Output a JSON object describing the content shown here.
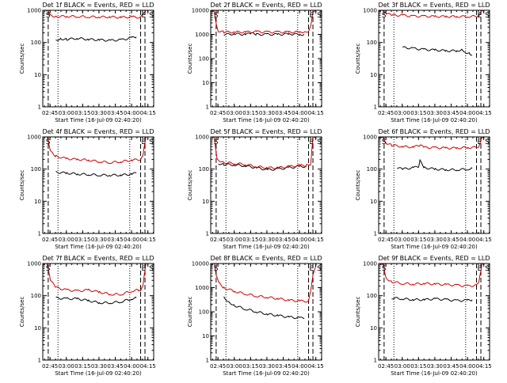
{
  "figure": {
    "background": "#ffffff",
    "axis_color": "#000000",
    "events_color": "#000000",
    "lld_color": "#cc0000"
  },
  "chart_data": [
    {
      "type": "line",
      "title": "Det 1f BLACK = Events, RED = LLD",
      "xlabel": "Start Time (16-Jul-09 02:40:20)",
      "ylabel": "Counts/sec",
      "yscale": "log",
      "ylim": [
        1,
        1000
      ],
      "xlim_minutes": [
        -2,
        100
      ],
      "x_ticks": [
        "02:45",
        "03:00",
        "03:15",
        "03:30",
        "03:45",
        "04:00",
        "04:15"
      ],
      "y_ticks": [
        "1",
        "10",
        "100",
        "1000"
      ],
      "markers": [
        {
          "label": "S",
          "minute": 0
        },
        {
          "label": "E",
          "minute": 88
        },
        {
          "label": "S",
          "minute": 95
        }
      ],
      "dashed_lines_minutes": [
        3,
        88,
        92
      ],
      "dotted_lines_minutes": [
        12,
        78
      ],
      "series": [
        {
          "name": "Events",
          "color": "#000000",
          "x": [
            10,
            15,
            20,
            30,
            40,
            50,
            60,
            70,
            80,
            84
          ],
          "y": [
            120,
            130,
            125,
            135,
            125,
            120,
            115,
            120,
            140,
            150
          ]
        },
        {
          "name": "LLD",
          "color": "#cc0000",
          "x": [
            -2,
            2,
            5,
            10,
            20,
            30,
            40,
            50,
            60,
            70,
            80,
            88,
            90,
            93,
            95
          ],
          "y": [
            1000,
            1000,
            700,
            640,
            650,
            640,
            630,
            620,
            620,
            600,
            620,
            600,
            700,
            1000,
            1000
          ]
        }
      ]
    },
    {
      "type": "line",
      "title": "Det 2f BLACK = Events, RED = LLD",
      "xlabel": "Start Time (16-Jul-09 02:40:20)",
      "ylabel": "Counts/sec",
      "yscale": "log",
      "ylim": [
        1,
        10000
      ],
      "xlim_minutes": [
        -2,
        100
      ],
      "x_ticks": [
        "02:45",
        "03:00",
        "03:15",
        "03:30",
        "03:45",
        "04:00",
        "04:15"
      ],
      "y_ticks": [
        "1",
        "10",
        "100",
        "1000",
        "10000"
      ],
      "markers": [
        {
          "label": "S",
          "minute": 0
        },
        {
          "label": "E",
          "minute": 88
        },
        {
          "label": "S",
          "minute": 95
        }
      ],
      "dashed_lines_minutes": [
        3,
        88,
        92
      ],
      "dotted_lines_minutes": [
        12,
        78
      ],
      "series": [
        {
          "name": "Events",
          "color": "#000000",
          "x": [
            10,
            20,
            30,
            35,
            40,
            50,
            60,
            70,
            80,
            84
          ],
          "y": [
            1000,
            1050,
            1000,
            1100,
            1000,
            1000,
            1000,
            1050,
            1000,
            1000
          ]
        },
        {
          "name": "LLD",
          "color": "#cc0000",
          "x": [
            -2,
            1,
            3,
            5,
            10,
            20,
            30,
            40,
            50,
            60,
            70,
            80,
            85,
            88,
            90,
            92,
            95
          ],
          "y": [
            10000,
            10000,
            3000,
            1400,
            1250,
            1250,
            1250,
            1300,
            1250,
            1250,
            1250,
            1250,
            1300,
            1400,
            2500,
            9000,
            10000
          ]
        }
      ]
    },
    {
      "type": "line",
      "title": "Det 3f BLACK = Events, RED = LLD",
      "xlabel": "Start Time (16-Jul-09 02:40:20)",
      "ylabel": "Counts/sec",
      "yscale": "log",
      "ylim": [
        1,
        1000
      ],
      "xlim_minutes": [
        -2,
        100
      ],
      "x_ticks": [
        "02:45",
        "03:00",
        "03:15",
        "03:30",
        "03:45",
        "04:00",
        "04:15"
      ],
      "y_ticks": [
        "1",
        "10",
        "100",
        "1000"
      ],
      "markers": [
        {
          "label": "S",
          "minute": 0
        },
        {
          "label": "E",
          "minute": 88
        },
        {
          "label": "S",
          "minute": 95
        }
      ],
      "dashed_lines_minutes": [
        3,
        88,
        92
      ],
      "dotted_lines_minutes": [
        12,
        78
      ],
      "series": [
        {
          "name": "Events",
          "color": "#000000",
          "x": [
            20,
            30,
            40,
            50,
            60,
            70,
            75,
            78,
            82,
            84
          ],
          "y": [
            70,
            65,
            60,
            58,
            55,
            55,
            60,
            50,
            45,
            40
          ]
        },
        {
          "name": "LLD",
          "color": "#cc0000",
          "x": [
            -2,
            2,
            5,
            10,
            20,
            30,
            40,
            50,
            60,
            70,
            80,
            88,
            90,
            93,
            95
          ],
          "y": [
            1000,
            1000,
            800,
            700,
            700,
            650,
            650,
            640,
            640,
            640,
            640,
            650,
            700,
            1000,
            1000
          ]
        }
      ]
    },
    {
      "type": "line",
      "title": "Det 4f BLACK = Events, RED = LLD",
      "xlabel": "Start Time (16-Jul-09 02:40:20)",
      "ylabel": "Counts/sec",
      "yscale": "log",
      "ylim": [
        1,
        1000
      ],
      "xlim_minutes": [
        -2,
        100
      ],
      "x_ticks": [
        "02:45",
        "03:00",
        "03:15",
        "03:30",
        "03:45",
        "04:00",
        "04:15"
      ],
      "y_ticks": [
        "1",
        "10",
        "100",
        "1000"
      ],
      "markers": [
        {
          "label": "S",
          "minute": 0
        },
        {
          "label": "E",
          "minute": 88
        },
        {
          "label": "S",
          "minute": 95
        }
      ],
      "dashed_lines_minutes": [
        3,
        88,
        92
      ],
      "dotted_lines_minutes": [
        12,
        78
      ],
      "series": [
        {
          "name": "Events",
          "color": "#000000",
          "x": [
            10,
            20,
            30,
            40,
            50,
            60,
            70,
            80,
            84
          ],
          "y": [
            80,
            75,
            70,
            68,
            65,
            65,
            65,
            70,
            75
          ]
        },
        {
          "name": "LLD",
          "color": "#cc0000",
          "x": [
            -2,
            2,
            5,
            10,
            20,
            30,
            40,
            50,
            60,
            70,
            80,
            88,
            90,
            93,
            95
          ],
          "y": [
            1000,
            1000,
            350,
            250,
            210,
            200,
            190,
            170,
            160,
            170,
            190,
            200,
            250,
            1000,
            1000
          ]
        }
      ]
    },
    {
      "type": "line",
      "title": "Det 5f BLACK = Events, RED = LLD",
      "xlabel": "Start Time (16-Jul-09 02:40:20)",
      "ylabel": "Counts/sec",
      "yscale": "log",
      "ylim": [
        1,
        1000
      ],
      "xlim_minutes": [
        -2,
        100
      ],
      "x_ticks": [
        "02:45",
        "03:00",
        "03:15",
        "03:30",
        "03:45",
        "04:00",
        "04:15"
      ],
      "y_ticks": [
        "1",
        "10",
        "100",
        "1000"
      ],
      "markers": [
        {
          "label": "S",
          "minute": 0
        },
        {
          "label": "E",
          "minute": 88
        },
        {
          "label": "S",
          "minute": 95
        }
      ],
      "dashed_lines_minutes": [
        3,
        88,
        92
      ],
      "dotted_lines_minutes": [
        12,
        78
      ],
      "series": [
        {
          "name": "Events",
          "color": "#000000",
          "x": [
            5,
            10,
            20,
            30,
            40,
            50,
            60,
            70,
            80,
            86
          ],
          "y": [
            150,
            140,
            135,
            125,
            110,
            95,
            100,
            110,
            120,
            120
          ]
        },
        {
          "name": "LLD",
          "color": "#cc0000",
          "x": [
            -2,
            1,
            4,
            10,
            20,
            30,
            40,
            50,
            60,
            70,
            80,
            86,
            90,
            92,
            95
          ],
          "y": [
            1000,
            1000,
            200,
            160,
            150,
            140,
            120,
            110,
            110,
            120,
            130,
            130,
            140,
            1000,
            1000
          ]
        }
      ]
    },
    {
      "type": "line",
      "title": "Det 6f BLACK = Events, RED = LLD",
      "xlabel": "Start Time (16-Jul-09 02:40:20)",
      "ylabel": "Counts/sec",
      "yscale": "log",
      "ylim": [
        1,
        1000
      ],
      "xlim_minutes": [
        -2,
        100
      ],
      "x_ticks": [
        "02:45",
        "03:00",
        "03:15",
        "03:30",
        "03:45",
        "04:00",
        "04:15"
      ],
      "y_ticks": [
        "1",
        "10",
        "100",
        "1000"
      ],
      "markers": [
        {
          "label": "S",
          "minute": 0
        },
        {
          "label": "E",
          "minute": 88
        },
        {
          "label": "S",
          "minute": 95
        }
      ],
      "dashed_lines_minutes": [
        3,
        88,
        92
      ],
      "dotted_lines_minutes": [
        12,
        78
      ],
      "series": [
        {
          "name": "Events",
          "color": "#000000",
          "x": [
            15,
            20,
            30,
            35,
            36,
            40,
            50,
            60,
            70,
            80,
            84
          ],
          "y": [
            110,
            100,
            110,
            120,
            180,
            110,
            100,
            95,
            95,
            100,
            105
          ]
        },
        {
          "name": "LLD",
          "color": "#cc0000",
          "x": [
            -2,
            2,
            5,
            10,
            20,
            30,
            36,
            40,
            50,
            60,
            70,
            80,
            88,
            90,
            93,
            95
          ],
          "y": [
            1000,
            1000,
            650,
            550,
            500,
            480,
            550,
            470,
            460,
            450,
            450,
            470,
            470,
            520,
            1000,
            1000
          ]
        }
      ]
    },
    {
      "type": "line",
      "title": "Det 7f BLACK = Events, RED = LLD",
      "xlabel": "Start Time (16-Jul-09 02:40:20)",
      "ylabel": "Counts/sec",
      "yscale": "log",
      "ylim": [
        1,
        1000
      ],
      "xlim_minutes": [
        -2,
        100
      ],
      "x_ticks": [
        "02:45",
        "03:00",
        "03:15",
        "03:30",
        "03:45",
        "04:00",
        "04:15"
      ],
      "y_ticks": [
        "1",
        "10",
        "100",
        "1000"
      ],
      "markers": [
        {
          "label": "S",
          "minute": 0
        },
        {
          "label": "E",
          "minute": 88
        },
        {
          "label": "S",
          "minute": 95
        }
      ],
      "dashed_lines_minutes": [
        3,
        88,
        92
      ],
      "dotted_lines_minutes": [
        12,
        78
      ],
      "series": [
        {
          "name": "Events",
          "color": "#000000",
          "x": [
            10,
            20,
            30,
            40,
            50,
            60,
            70,
            80,
            84
          ],
          "y": [
            85,
            80,
            80,
            70,
            60,
            60,
            65,
            80,
            85
          ]
        },
        {
          "name": "LLD",
          "color": "#cc0000",
          "x": [
            -2,
            2,
            5,
            10,
            20,
            30,
            40,
            50,
            60,
            70,
            80,
            86,
            88,
            90,
            93,
            95
          ],
          "y": [
            1000,
            1000,
            300,
            180,
            150,
            140,
            150,
            130,
            110,
            110,
            140,
            150,
            150,
            200,
            1000,
            1000
          ]
        }
      ]
    },
    {
      "type": "line",
      "title": "Det 8f BLACK = Events, RED = LLD",
      "xlabel": "Start Time (16-Jul-09 02:40:20)",
      "ylabel": "Counts/sec",
      "yscale": "log",
      "ylim": [
        1,
        10000
      ],
      "xlim_minutes": [
        -2,
        100
      ],
      "x_ticks": [
        "02:45",
        "03:00",
        "03:15",
        "03:30",
        "03:45",
        "04:00",
        "04:15"
      ],
      "y_ticks": [
        "1",
        "10",
        "100",
        "1000",
        "10000"
      ],
      "markers": [
        {
          "label": "S",
          "minute": 0
        },
        {
          "label": "E",
          "minute": 88
        },
        {
          "label": "S",
          "minute": 95
        }
      ],
      "dashed_lines_minutes": [
        3,
        88,
        92
      ],
      "dotted_lines_minutes": [
        12,
        78
      ],
      "series": [
        {
          "name": "Events",
          "color": "#000000",
          "x": [
            10,
            15,
            20,
            30,
            40,
            50,
            60,
            70,
            80,
            84
          ],
          "y": [
            400,
            250,
            180,
            130,
            100,
            80,
            70,
            60,
            55,
            55
          ]
        },
        {
          "name": "LLD",
          "color": "#cc0000",
          "x": [
            -2,
            1,
            3,
            6,
            10,
            20,
            30,
            40,
            50,
            60,
            70,
            80,
            88,
            90,
            92,
            95
          ],
          "y": [
            10000,
            10000,
            3000,
            1500,
            1000,
            700,
            550,
            450,
            400,
            350,
            300,
            280,
            270,
            700,
            3000,
            10000
          ]
        }
      ]
    },
    {
      "type": "line",
      "title": "Det 9f BLACK = Events, RED = LLD",
      "xlabel": "Start Time (16-Jul-09 02:40:20)",
      "ylabel": "Counts/sec",
      "yscale": "log",
      "ylim": [
        1,
        1000
      ],
      "xlim_minutes": [
        -2,
        100
      ],
      "x_ticks": [
        "02:45",
        "03:00",
        "03:15",
        "03:30",
        "03:45",
        "04:00",
        "04:15"
      ],
      "y_ticks": [
        "1",
        "10",
        "100",
        "1000"
      ],
      "markers": [
        {
          "label": "S",
          "minute": 0
        },
        {
          "label": "E",
          "minute": 88
        },
        {
          "label": "S",
          "minute": 95
        }
      ],
      "dashed_lines_minutes": [
        3,
        88,
        92
      ],
      "dotted_lines_minutes": [
        12,
        78
      ],
      "series": [
        {
          "name": "Events",
          "color": "#000000",
          "x": [
            10,
            20,
            30,
            40,
            50,
            60,
            70,
            80,
            84
          ],
          "y": [
            85,
            80,
            75,
            75,
            80,
            75,
            70,
            72,
            75
          ]
        },
        {
          "name": "LLD",
          "color": "#cc0000",
          "x": [
            -2,
            2,
            5,
            10,
            20,
            30,
            40,
            50,
            60,
            70,
            80,
            88,
            90,
            93,
            95
          ],
          "y": [
            1000,
            1000,
            350,
            270,
            240,
            230,
            240,
            230,
            220,
            210,
            200,
            210,
            250,
            1000,
            1000
          ]
        }
      ]
    }
  ]
}
